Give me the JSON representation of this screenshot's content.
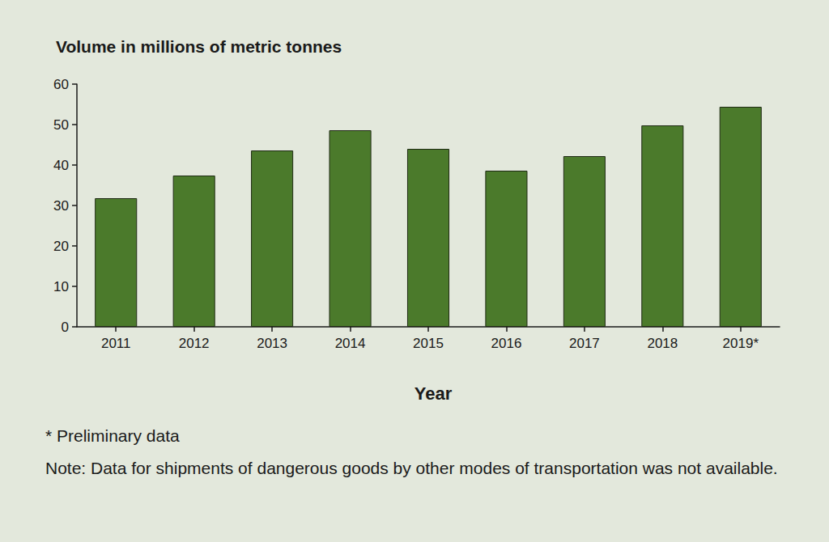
{
  "chart_data": {
    "type": "bar",
    "title": "Volume in millions of metric tonnes",
    "xlabel": "Year",
    "categories": [
      "2011",
      "2012",
      "2013",
      "2014",
      "2015",
      "2016",
      "2017",
      "2018",
      "2019*"
    ],
    "values": [
      31.8,
      37.4,
      43.6,
      48.6,
      44.0,
      38.6,
      42.2,
      49.8,
      54.4
    ],
    "color": "#4b7a2b",
    "ylim": [
      0,
      60
    ],
    "yticks": [
      0,
      10,
      20,
      30,
      40,
      50,
      60
    ],
    "grid": false,
    "annotations": [
      "* Preliminary data",
      "Note: Data for shipments of dangerous goods by other modes of transportation was not available."
    ]
  }
}
